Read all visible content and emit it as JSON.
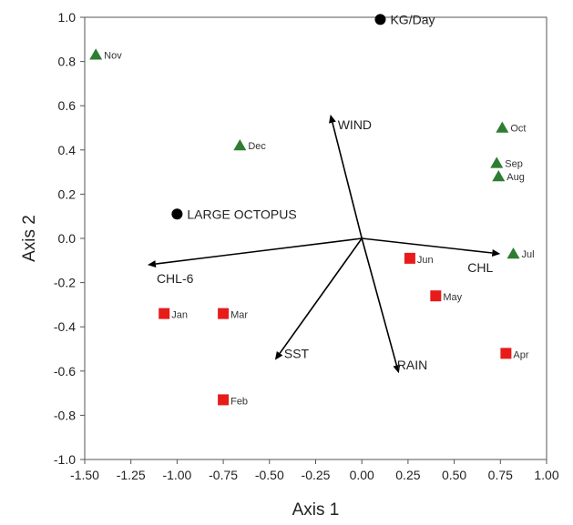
{
  "chart_data": {
    "type": "scatter",
    "title": "",
    "xlabel": "Axis 1",
    "ylabel": "Axis 2",
    "xlim": [
      -1.5,
      1.0
    ],
    "ylim": [
      -1.0,
      1.0
    ],
    "xticks": [
      "-1.50",
      "-1.25",
      "-1.00",
      "-0.75",
      "-0.50",
      "-0.25",
      "0.00",
      "0.25",
      "0.50",
      "0.75",
      "1.00"
    ],
    "yticks": [
      "-1.0",
      "-0.8",
      "-0.6",
      "-0.4",
      "-0.2",
      "0.0",
      "0.2",
      "0.4",
      "0.6",
      "0.8",
      "1.0"
    ],
    "grid": false,
    "colors": {
      "triangle": "#2e7d32",
      "square": "#e81b1b",
      "circle": "#000000",
      "vector": "#000000"
    },
    "triangles": [
      {
        "label": "Nov",
        "x": -1.44,
        "y": 0.83
      },
      {
        "label": "Dec",
        "x": -0.66,
        "y": 0.42
      },
      {
        "label": "Oct",
        "x": 0.76,
        "y": 0.5
      },
      {
        "label": "Sep",
        "x": 0.73,
        "y": 0.34
      },
      {
        "label": "Aug",
        "x": 0.74,
        "y": 0.28
      },
      {
        "label": "Jul",
        "x": 0.82,
        "y": -0.07
      }
    ],
    "squares": [
      {
        "label": "Jan",
        "x": -1.07,
        "y": -0.34
      },
      {
        "label": "Mar",
        "x": -0.75,
        "y": -0.34
      },
      {
        "label": "Feb",
        "x": -0.75,
        "y": -0.73
      },
      {
        "label": "Jun",
        "x": 0.26,
        "y": -0.09
      },
      {
        "label": "May",
        "x": 0.4,
        "y": -0.26
      },
      {
        "label": "Apr",
        "x": 0.78,
        "y": -0.52
      }
    ],
    "circles": [
      {
        "label": "KG/Day",
        "x": 0.1,
        "y": 0.99
      },
      {
        "label": "LARGE OCTOPUS",
        "x": -1.0,
        "y": 0.11
      }
    ],
    "vectors": [
      {
        "label": "WIND",
        "x": -0.17,
        "y": 0.56
      },
      {
        "label": "CHL-6",
        "x": -1.16,
        "y": -0.12
      },
      {
        "label": "CHL",
        "x": 0.75,
        "y": -0.07
      },
      {
        "label": "SST",
        "x": -0.47,
        "y": -0.55
      },
      {
        "label": "RAIN",
        "x": 0.2,
        "y": -0.61
      }
    ]
  }
}
